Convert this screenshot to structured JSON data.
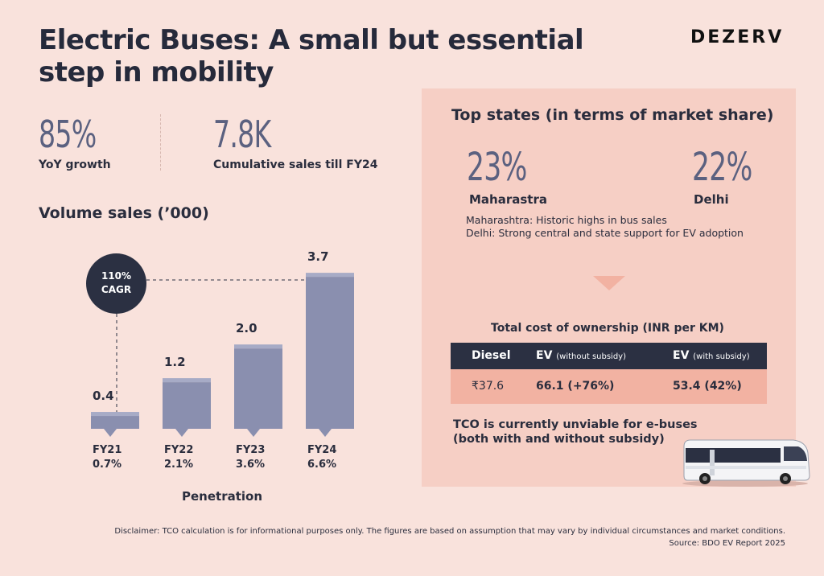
{
  "header": {
    "title_line1": "Electric Buses: A small but essential",
    "title_line2": "step in mobility",
    "brand": "DEZERV"
  },
  "stats": [
    {
      "value": "85%",
      "label": "YoY growth"
    },
    {
      "value": "7.8K",
      "label": "Cumulative sales till FY24"
    }
  ],
  "volume_heading": "Volume sales (’000)",
  "cagr": {
    "value": "110%",
    "label": "CAGR"
  },
  "penetration_label": "Penetration",
  "chart_data": {
    "type": "bar",
    "categories": [
      "FY21",
      "FY22",
      "FY23",
      "FY24"
    ],
    "values": [
      0.4,
      1.2,
      2.0,
      3.7
    ],
    "value_labels": [
      "0.4",
      "1.2",
      "2.0",
      "3.7"
    ],
    "penetration": [
      "0.7%",
      "2.1%",
      "3.6%",
      "6.6%"
    ],
    "title": "Volume sales (’000)",
    "xlabel": "Penetration",
    "ylabel": "",
    "bar_color": "#8a8faf"
  },
  "states_panel": {
    "heading": "Top states (in terms of market share)",
    "states": [
      {
        "value": "23%",
        "name": "Maharastra"
      },
      {
        "value": "22%",
        "name": "Delhi"
      }
    ],
    "notes": [
      "Maharashtra: Historic highs in bus sales",
      "Delhi: Strong central and state support for EV adoption"
    ]
  },
  "tco": {
    "title": "Total cost of ownership (INR per KM)",
    "headers": [
      {
        "main": "Diesel",
        "sub": ""
      },
      {
        "main": "EV",
        "sub": "(without subsidy)"
      },
      {
        "main": "EV",
        "sub": "(with subsidy)"
      }
    ],
    "values": [
      "₹37.6",
      "66.1 (+76%)",
      "53.4 (42%)"
    ],
    "note": "TCO is currently unviable for e-buses (both with and without subsidy)"
  },
  "footer": {
    "disclaimer": "Disclaimer: TCO calculation is for informational purposes only. The figures are based on assumption that may vary by individual circumstances and market conditions.",
    "source": "Source: BDO EV Report 2025"
  },
  "colors": {
    "background": "#f9e2dc",
    "panel": "#f6cfc5",
    "accent_dark": "#2b3042",
    "table_row": "#f2b2a2",
    "bar": "#8a8faf"
  }
}
